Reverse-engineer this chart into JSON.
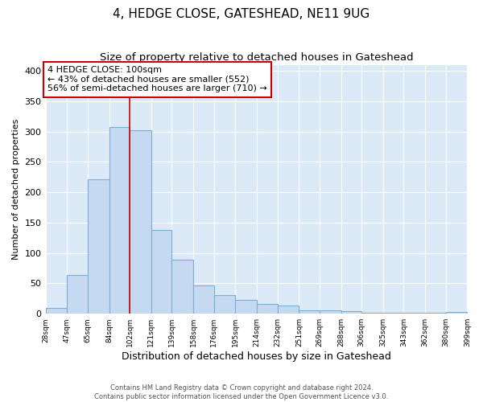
{
  "title": "4, HEDGE CLOSE, GATESHEAD, NE11 9UG",
  "subtitle": "Size of property relative to detached houses in Gateshead",
  "xlabel": "Distribution of detached houses by size in Gateshead",
  "ylabel": "Number of detached properties",
  "bin_labels": [
    "28sqm",
    "47sqm",
    "65sqm",
    "84sqm",
    "102sqm",
    "121sqm",
    "139sqm",
    "158sqm",
    "176sqm",
    "195sqm",
    "214sqm",
    "232sqm",
    "251sqm",
    "269sqm",
    "288sqm",
    "306sqm",
    "325sqm",
    "343sqm",
    "362sqm",
    "380sqm",
    "399sqm"
  ],
  "bin_edges": [
    28,
    47,
    65,
    84,
    102,
    121,
    139,
    158,
    176,
    195,
    214,
    232,
    251,
    269,
    288,
    306,
    325,
    343,
    362,
    380,
    399
  ],
  "counts": [
    9,
    64,
    222,
    307,
    302,
    138,
    89,
    46,
    31,
    23,
    16,
    13,
    5,
    5,
    4,
    1,
    2,
    1,
    1,
    3
  ],
  "bar_color": "#c5d9f0",
  "bar_edge_color": "#7bafd4",
  "vline_x": 102,
  "vline_color": "#cc0000",
  "annotation_title": "4 HEDGE CLOSE: 100sqm",
  "annotation_line1": "← 43% of detached houses are smaller (552)",
  "annotation_line2": "56% of semi-detached houses are larger (710) →",
  "annotation_box_color": "#ffffff",
  "annotation_box_edge": "#cc0000",
  "ylim": [
    0,
    410
  ],
  "xlim_left": 28,
  "xlim_right": 399,
  "background_color": "#dce9f7",
  "footer_line1": "Contains HM Land Registry data © Crown copyright and database right 2024.",
  "footer_line2": "Contains public sector information licensed under the Open Government Licence v3.0.",
  "title_fontsize": 11,
  "subtitle_fontsize": 9.5,
  "ylabel_fontsize": 8,
  "xlabel_fontsize": 9
}
